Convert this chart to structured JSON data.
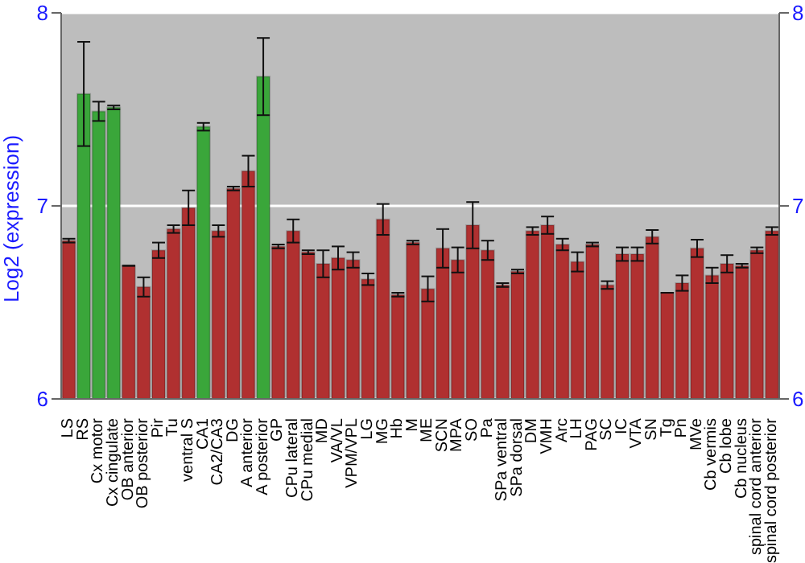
{
  "chart_data": {
    "type": "bar",
    "ylabel": "Log2 (expression)",
    "categories": [
      "LS",
      "RS",
      "Cx motor",
      "Cx cingulate",
      "OB anterior",
      "OB posterior",
      "Pir",
      "Tu",
      "ventral S",
      "CA1",
      "CA2/CA3",
      "DG",
      "A anterior",
      "A posterior",
      "GP",
      "CPu lateral",
      "CPu medial",
      "MD",
      "VA/VL",
      "VPM/VPL",
      "LG",
      "MG",
      "Hb",
      "M",
      "ME",
      "SCN",
      "MPA",
      "SO",
      "Pa",
      "SPa ventral",
      "SPa dorsal",
      "DM",
      "VMH",
      "Arc",
      "LH",
      "PAG",
      "SC",
      "IC",
      "VTA",
      "SN",
      "Tg",
      "Pn",
      "MVe",
      "Cb vermis",
      "Cb lobe",
      "Cb nucleus",
      "spinal cord anterior",
      "spinal cord posterior"
    ],
    "values": [
      6.82,
      7.58,
      7.49,
      7.51,
      6.69,
      6.58,
      6.77,
      6.88,
      6.99,
      7.41,
      6.87,
      7.09,
      7.18,
      7.67,
      6.79,
      6.87,
      6.76,
      6.7,
      6.73,
      6.72,
      6.62,
      6.93,
      6.54,
      6.81,
      6.57,
      6.78,
      6.72,
      6.9,
      6.77,
      6.59,
      6.66,
      6.87,
      6.9,
      6.8,
      6.71,
      6.8,
      6.59,
      6.75,
      6.75,
      6.84,
      6.55,
      6.6,
      6.78,
      6.64,
      6.7,
      6.69,
      6.77,
      6.87
    ],
    "errors": [
      0.01,
      0.27,
      0.05,
      0.01,
      null,
      0.05,
      0.04,
      0.02,
      0.09,
      0.02,
      0.03,
      0.01,
      0.08,
      0.2,
      0.01,
      0.06,
      0.01,
      0.07,
      0.06,
      0.04,
      0.03,
      0.08,
      0.01,
      0.01,
      0.065,
      0.1,
      0.065,
      0.12,
      0.05,
      0.01,
      0.01,
      0.02,
      0.045,
      0.03,
      0.05,
      0.01,
      0.02,
      0.035,
      0.035,
      0.035,
      null,
      0.04,
      0.045,
      0.04,
      0.045,
      0.01,
      0.015,
      0.02
    ],
    "colors": [
      "#b03030",
      "#3aa63a",
      "#3aa63a",
      "#3aa63a",
      "#b03030",
      "#b03030",
      "#b03030",
      "#b03030",
      "#b03030",
      "#3aa63a",
      "#b03030",
      "#b03030",
      "#b03030",
      "#3aa63a",
      "#b03030",
      "#b03030",
      "#b03030",
      "#b03030",
      "#b03030",
      "#b03030",
      "#b03030",
      "#b03030",
      "#b03030",
      "#b03030",
      "#b03030",
      "#b03030",
      "#b03030",
      "#b03030",
      "#b03030",
      "#b03030",
      "#b03030",
      "#b03030",
      "#b03030",
      "#b03030",
      "#b03030",
      "#b03030",
      "#b03030",
      "#b03030",
      "#b03030",
      "#b03030",
      "#b03030",
      "#b03030",
      "#b03030",
      "#b03030",
      "#b03030",
      "#b03030",
      "#b03030",
      "#b03030"
    ],
    "ylim": [
      6,
      8
    ],
    "yticks": [
      6,
      7,
      8
    ],
    "y2lim": [
      6,
      8
    ],
    "y2ticks": [
      6,
      7,
      8
    ],
    "grid": "y"
  }
}
